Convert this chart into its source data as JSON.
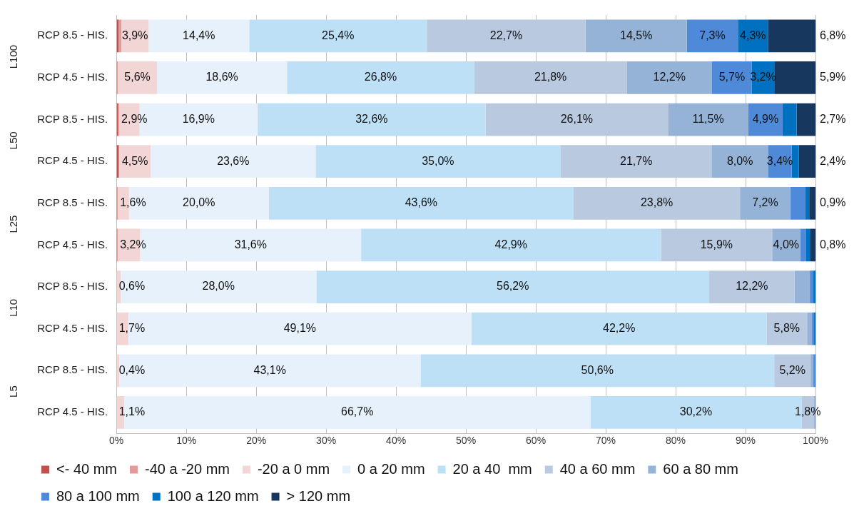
{
  "chart_data": {
    "type": "bar",
    "orientation": "horizontal",
    "stacked": true,
    "grid": "x",
    "legend": "bottom",
    "categories": [
      "RCP 8.5 - HIS.",
      "RCP 4.5 - HIS.",
      "RCP 8.5 - HIS.",
      "RCP 4.5 - HIS.",
      "RCP 8.5 - HIS.",
      "RCP 4.5 - HIS.",
      "RCP 8.5 - HIS.",
      "RCP 4.5 - HIS.",
      "RCP 8.5 - HIS.",
      "RCP 4.5 - HIS."
    ],
    "annotations": [
      "L100",
      "L50",
      "L25",
      "L10",
      "L5"
    ],
    "xlim": [
      0,
      100
    ],
    "xticks": [
      {
        "value": 0,
        "label": "0%"
      },
      {
        "value": 10,
        "label": "10%"
      },
      {
        "value": 20,
        "label": "20%"
      },
      {
        "value": 30,
        "label": "30%"
      },
      {
        "value": 40,
        "label": "40%"
      },
      {
        "value": 50,
        "label": "50%"
      },
      {
        "value": 60,
        "label": "60%"
      },
      {
        "value": 70,
        "label": "70%"
      },
      {
        "value": 80,
        "label": "80%"
      },
      {
        "value": 90,
        "label": "90%"
      },
      {
        "value": 100,
        "label": "100%"
      }
    ],
    "series": [
      {
        "name": "<- 40 mm",
        "color": "#c0504d",
        "values": [
          0.3,
          0.1,
          0.2,
          0.3,
          0.1,
          0.1,
          0,
          0,
          0,
          0
        ],
        "value_labels": [
          null,
          null,
          null,
          null,
          null,
          null,
          null,
          null,
          null,
          null
        ]
      },
      {
        "name": "-40 a -20 mm",
        "color": "#e29b9a",
        "values": [
          0.4,
          0.1,
          0.2,
          0.1,
          0.1,
          0.1,
          0,
          0,
          0,
          0
        ],
        "value_labels": [
          null,
          null,
          null,
          null,
          null,
          null,
          null,
          null,
          null,
          null
        ]
      },
      {
        "name": "-20 a 0 mm",
        "color": "#f2d6d6",
        "values": [
          3.9,
          5.6,
          2.9,
          4.5,
          1.6,
          3.2,
          0.6,
          1.7,
          0.4,
          1.1
        ],
        "value_labels": [
          "3,9%",
          "5,6%",
          "2,9%",
          "4,5%",
          "1,6%",
          "3,2%",
          "0,6%",
          "1,7%",
          "0,4%",
          "1,1%"
        ]
      },
      {
        "name": "0 a 20 mm",
        "color": "#e7f1fb",
        "values": [
          14.4,
          18.6,
          16.9,
          23.6,
          20.0,
          31.6,
          28.0,
          49.1,
          43.1,
          66.7
        ],
        "value_labels": [
          "14,4%",
          "18,6%",
          "16,9%",
          "23,6%",
          "20,0%",
          "31,6%",
          "28,0%",
          "49,1%",
          "43,1%",
          "66,7%"
        ]
      },
      {
        "name": "20 a 40  mm",
        "color": "#bde0f6",
        "values": [
          25.4,
          26.8,
          32.6,
          35.0,
          43.6,
          42.9,
          56.2,
          42.2,
          50.6,
          30.2
        ],
        "value_labels": [
          "25,4%",
          "26,8%",
          "32,6%",
          "35,0%",
          "43,6%",
          "42,9%",
          "56,2%",
          "42,2%",
          "50,6%",
          "30,2%"
        ]
      },
      {
        "name": "40 a 60 mm",
        "color": "#b8c9e0",
        "values": [
          22.7,
          21.8,
          26.1,
          21.7,
          23.8,
          15.9,
          12.2,
          5.8,
          5.2,
          1.8
        ],
        "value_labels": [
          "22,7%",
          "21,8%",
          "26,1%",
          "21,7%",
          "23,8%",
          "15,9%",
          "12,2%",
          "5,8%",
          "5,2%",
          "1,8%"
        ]
      },
      {
        "name": "60 a 80 mm",
        "color": "#95b3d7",
        "values": [
          14.5,
          12.2,
          11.5,
          8.0,
          7.2,
          4.0,
          2.2,
          0.7,
          0.4,
          0.2
        ],
        "value_labels": [
          "14,5%",
          "12,2%",
          "11,5%",
          "8,0%",
          "7,2%",
          "4,0%",
          null,
          null,
          null,
          null
        ]
      },
      {
        "name": "80 a 100 mm",
        "color": "#4f8ad8",
        "values": [
          7.3,
          5.7,
          4.9,
          3.4,
          2.1,
          0.8,
          0.5,
          0.3,
          0.3,
          0
        ],
        "value_labels": [
          "7,3%",
          "5,7%",
          "4,9%",
          "3,4%",
          null,
          null,
          null,
          null,
          null,
          null
        ]
      },
      {
        "name": "100 a 120 mm",
        "color": "#0070c0",
        "values": [
          4.3,
          3.2,
          2.0,
          1.0,
          0.6,
          0.6,
          0.3,
          0.2,
          0,
          0
        ],
        "value_labels": [
          "4,3%",
          "3,2%",
          null,
          null,
          null,
          null,
          null,
          null,
          null,
          null
        ]
      },
      {
        "name": "> 120 mm",
        "color": "#17375e",
        "values": [
          6.8,
          5.9,
          2.7,
          2.4,
          0.9,
          0.8,
          0,
          0,
          0,
          0
        ],
        "value_labels": [
          "6,8%",
          "5,9%",
          "2,7%",
          "2,4%",
          "0,9%",
          "0,8%",
          null,
          null,
          null,
          null
        ]
      }
    ]
  }
}
